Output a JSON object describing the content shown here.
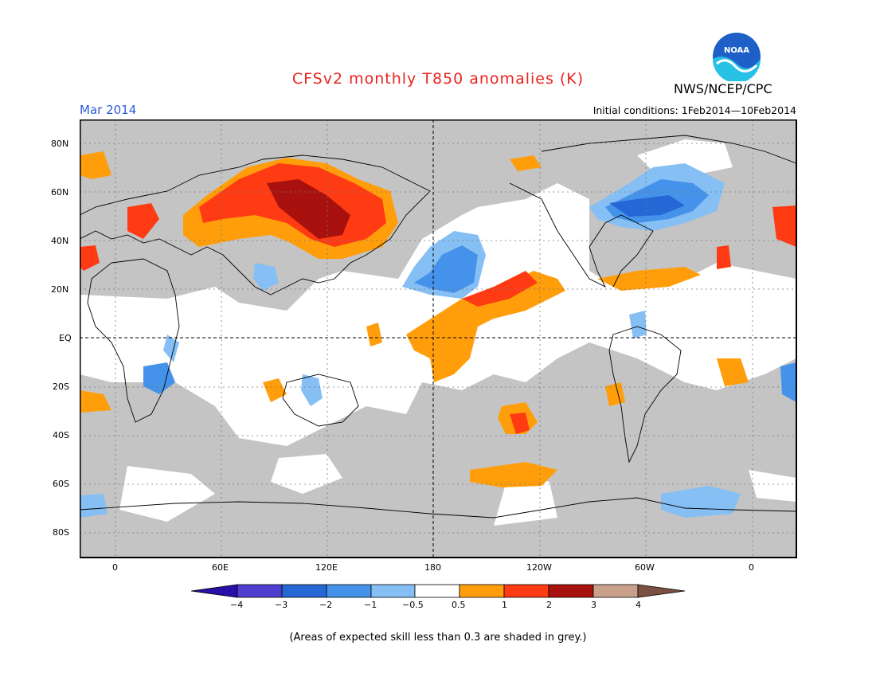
{
  "header": {
    "title": "CFSv2 monthly T850 anomalies (K)",
    "month": "Mar 2014",
    "agency": "NWS/NCEP/CPC",
    "initial_conditions": "Initial conditions: 1Feb2014—10Feb2014",
    "logo_text": "NOAA"
  },
  "map": {
    "lat_labels": [
      "80N",
      "60N",
      "40N",
      "20N",
      "EQ",
      "20S",
      "40S",
      "60S",
      "80S"
    ],
    "lon_labels": [
      "0",
      "60E",
      "120E",
      "180",
      "120W",
      "60W",
      "0"
    ]
  },
  "colorbar": {
    "labels": [
      "−4",
      "−3",
      "−2",
      "−1",
      "−0.5",
      "0.5",
      "1",
      "2",
      "3",
      "4"
    ],
    "colors": [
      "#2a0ea8",
      "#4d3ed0",
      "#2667d6",
      "#4492ea",
      "#86bff4",
      "#ffffff",
      "#ff9e0a",
      "#ff3b14",
      "#a8110e",
      "#c9a08a",
      "#7a5142"
    ]
  },
  "footer": {
    "note": "(Areas of expected skill less than 0.3 are shaded in grey.)"
  },
  "colors": {
    "grey_shade": "#c4c4c4",
    "title": "#e8251f",
    "month": "#2d5bd8"
  }
}
